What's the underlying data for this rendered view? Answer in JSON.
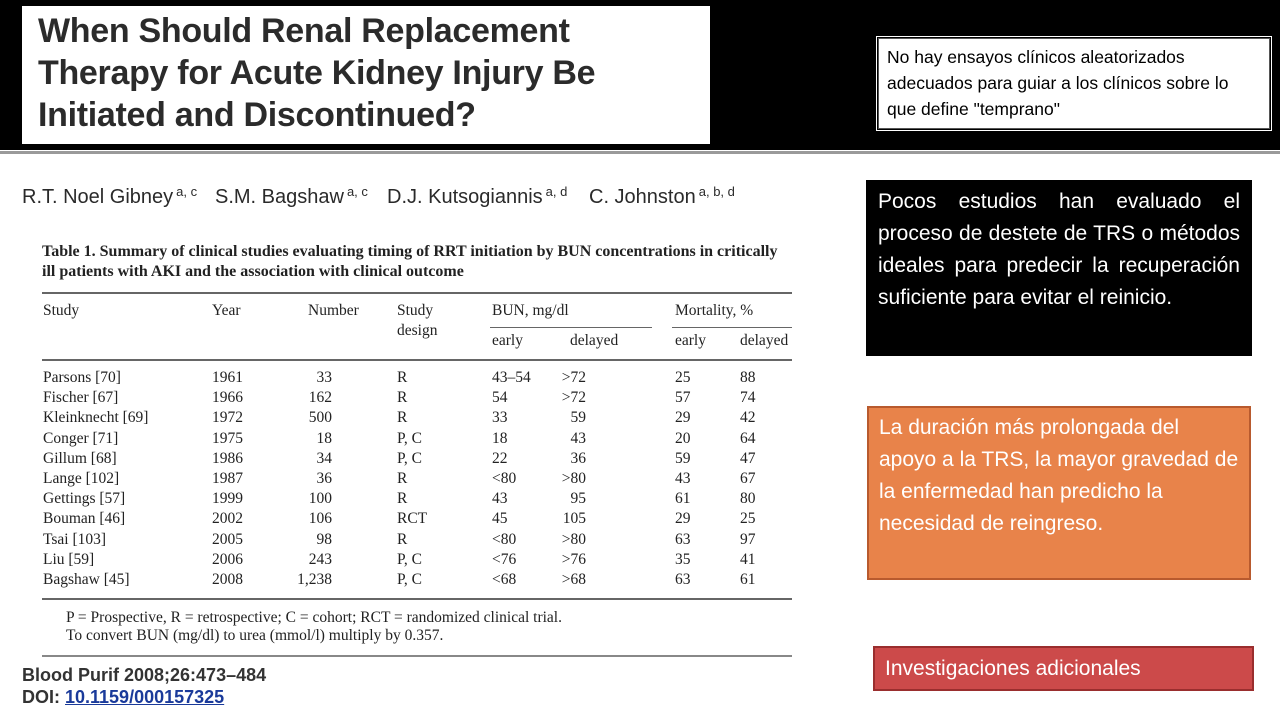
{
  "header": {
    "title_lines": [
      "When Should Renal Replacement",
      "Therapy for Acute Kidney Injury Be",
      "Initiated and Discontinued?"
    ],
    "note": "No hay ensayos clínicos aleatorizados adecuados para guiar a los clínicos sobre lo que define \"temprano\""
  },
  "authors": [
    {
      "name": "R.T. Noel Gibney",
      "sup": "a, c"
    },
    {
      "name": "S.M. Bagshaw",
      "sup": "a, c"
    },
    {
      "name": "D.J. Kutsogiannis",
      "sup": "a, d"
    },
    {
      "name": "C. Johnston",
      "sup": "a, b, d"
    }
  ],
  "table": {
    "caption": [
      "Table 1. Summary of clinical studies evaluating timing of RRT initiation by BUN concentrations in critically",
      "ill patients with AKI and the association with clinical outcome"
    ],
    "headers": {
      "study": "Study",
      "year": "Year",
      "number": "Number",
      "design": [
        "Study",
        "design"
      ],
      "bun": "BUN, mg/dl",
      "mortality": "Mortality, %",
      "early": "early",
      "delayed": "delayed"
    },
    "rows": [
      [
        "Parsons [70]",
        "1961",
        "33",
        "R",
        "43–54",
        ">72",
        "25",
        "88"
      ],
      [
        "Fischer [67]",
        "1966",
        "162",
        "R",
        "54",
        ">72",
        "57",
        "74"
      ],
      [
        "Kleinknecht [69]",
        "1972",
        "500",
        "R",
        "33",
        "59",
        "29",
        "42"
      ],
      [
        "Conger [71]",
        "1975",
        "18",
        "P, C",
        "18",
        "43",
        "20",
        "64"
      ],
      [
        "Gillum [68]",
        "1986",
        "34",
        "P, C",
        "22",
        "36",
        "59",
        "47"
      ],
      [
        "Lange [102]",
        "1987",
        "36",
        "R",
        "<80",
        ">80",
        "43",
        "67"
      ],
      [
        "Gettings [57]",
        "1999",
        "100",
        "R",
        "43",
        "95",
        "61",
        "80"
      ],
      [
        "Bouman [46]",
        "2002",
        "106",
        "RCT",
        "45",
        "105",
        "29",
        "25"
      ],
      [
        "Tsai [103]",
        "2005",
        "98",
        "R",
        "<80",
        ">80",
        "63",
        "97"
      ],
      [
        "Liu [59]",
        "2006",
        "243",
        "P, C",
        "<76",
        ">76",
        "35",
        "41"
      ],
      [
        "Bagshaw [45]",
        "2008",
        "1,238",
        "P, C",
        "<68",
        ">68",
        "63",
        "61"
      ]
    ],
    "footnotes": [
      "P = Prospective, R = retrospective; C = cohort; RCT = randomized clinical trial.",
      "To convert BUN (mg/dl) to urea (mmol/l) multiply by 0.357."
    ]
  },
  "citation": {
    "journal": "Blood Purif 2008;26:473–484",
    "doi_label": "DOI: ",
    "doi": "10.1159/000157325"
  },
  "boxes": [
    "Pocos estudios han evaluado el proceso de destete de TRS o métodos ideales para predecir la recuperación suficiente para evitar el reinicio.",
    "La duración más prolongada del apoyo a la TRS, la mayor gravedad de la enfermedad han predicho la necesidad de reingreso.",
    "Investigaciones adicionales"
  ]
}
